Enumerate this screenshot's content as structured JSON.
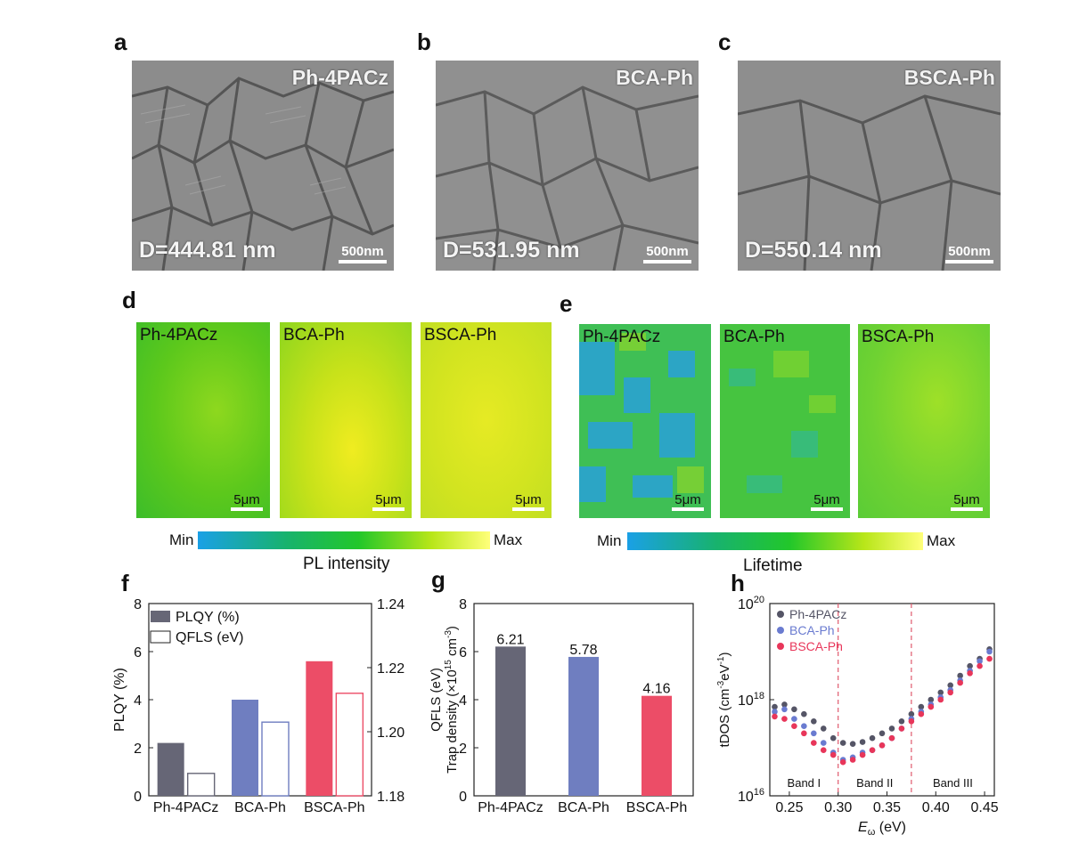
{
  "panels": {
    "a": "a",
    "b": "b",
    "c": "c",
    "d": "d",
    "e": "e",
    "f": "f",
    "g": "g",
    "h": "h"
  },
  "sem": [
    {
      "name": "Ph-4PACz",
      "grain": "D=444.81 nm",
      "scale": "500nm"
    },
    {
      "name": "BCA-Ph",
      "grain": "D=531.95 nm",
      "scale": "500nm"
    },
    {
      "name": "BSCA-Ph",
      "grain": "D=550.14 nm",
      "scale": "500nm"
    }
  ],
  "pl_maps": [
    {
      "name": "Ph-4PACz",
      "scale": "5μm"
    },
    {
      "name": "BCA-Ph",
      "scale": "5μm"
    },
    {
      "name": "BSCA-Ph",
      "scale": "5μm"
    }
  ],
  "lifetime_maps": [
    {
      "name": "Ph-4PACz",
      "scale": "5μm"
    },
    {
      "name": "BCA-Ph",
      "scale": "5μm"
    },
    {
      "name": "BSCA-Ph",
      "scale": "5μm"
    }
  ],
  "colorbars": {
    "pl": {
      "min": "Min",
      "max": "Max",
      "title": "PL intensity"
    },
    "lifetime": {
      "min": "Min",
      "max": "Max",
      "title": "Lifetime"
    }
  },
  "colors": {
    "ph4pacz": "#666676",
    "bcaph": "#6f7ec0",
    "bscaph": "#ec4d67"
  },
  "chart_data": [
    {
      "type": "bar",
      "panel": "f",
      "categories": [
        "Ph-4PACz",
        "BCA-Ph",
        "BSCA-Ph"
      ],
      "series": [
        {
          "name": "PLQY (%)",
          "values": [
            2.2,
            4.0,
            5.6
          ],
          "axis": "left",
          "fill": "solid"
        },
        {
          "name": "QFLS (eV)",
          "values": [
            1.187,
            1.203,
            1.212
          ],
          "axis": "right",
          "fill": "hollow"
        }
      ],
      "ylabel": "PLQY (%)",
      "y2label": "QFLS (eV)",
      "ylim": [
        0,
        8
      ],
      "y2lim": [
        1.18,
        1.24
      ],
      "yticks": [
        "0",
        "2",
        "4",
        "6",
        "8"
      ],
      "y2ticks": [
        "1.18",
        "1.20",
        "1.22",
        "1.24"
      ]
    },
    {
      "type": "bar",
      "panel": "g",
      "categories": [
        "Ph-4PACz",
        "BCA-Ph",
        "BSCA-Ph"
      ],
      "values": [
        6.21,
        5.78,
        4.16
      ],
      "value_labels": [
        "6.21",
        "5.78",
        "4.16"
      ],
      "ylabel_lines": [
        "QFLS (eV)",
        "Trap density (×10",
        "15",
        " cm",
        "-3",
        ")"
      ],
      "ylim": [
        0,
        8
      ],
      "yticks": [
        "0",
        "2",
        "4",
        "6",
        "8"
      ]
    },
    {
      "type": "scatter",
      "panel": "h",
      "xlabel_main": "E",
      "xlabel_sub": "ω",
      "xlabel_unit": " (eV)",
      "ylabel": "tDOS (cm",
      "ylabel_sup": "-3",
      "ylabel_mid": "eV",
      "ylabel_sup2": "-1",
      "ylabel_end": ")",
      "xlim": [
        0.23,
        0.46
      ],
      "ylim_log10": [
        16,
        20
      ],
      "log_y": true,
      "xticks": [
        "0.25",
        "0.30",
        "0.35",
        "0.40",
        "0.45"
      ],
      "ytick_labels": [
        {
          "base": "10",
          "exp": "16"
        },
        {
          "base": "10",
          "exp": "18"
        },
        {
          "base": "10",
          "exp": "20"
        }
      ],
      "band_dividers": [
        0.3,
        0.375
      ],
      "bands": [
        "Band I",
        "Band II",
        "Band III"
      ],
      "series": [
        {
          "name": "Ph-4PACz",
          "color": "#555566",
          "points": [
            [
              0.235,
              17.85
            ],
            [
              0.245,
              17.9
            ],
            [
              0.255,
              17.8
            ],
            [
              0.265,
              17.7
            ],
            [
              0.275,
              17.55
            ],
            [
              0.285,
              17.4
            ],
            [
              0.295,
              17.2
            ],
            [
              0.305,
              17.1
            ],
            [
              0.315,
              17.08
            ],
            [
              0.325,
              17.12
            ],
            [
              0.335,
              17.2
            ],
            [
              0.345,
              17.3
            ],
            [
              0.355,
              17.4
            ],
            [
              0.365,
              17.55
            ],
            [
              0.375,
              17.7
            ],
            [
              0.385,
              17.85
            ],
            [
              0.395,
              18.0
            ],
            [
              0.405,
              18.15
            ],
            [
              0.415,
              18.3
            ],
            [
              0.425,
              18.5
            ],
            [
              0.435,
              18.7
            ],
            [
              0.445,
              18.85
            ],
            [
              0.455,
              19.05
            ]
          ]
        },
        {
          "name": "BCA-Ph",
          "color": "#6a7bd0",
          "points": [
            [
              0.235,
              17.75
            ],
            [
              0.245,
              17.8
            ],
            [
              0.255,
              17.6
            ],
            [
              0.265,
              17.45
            ],
            [
              0.275,
              17.3
            ],
            [
              0.285,
              17.1
            ],
            [
              0.295,
              16.9
            ],
            [
              0.305,
              16.75
            ],
            [
              0.315,
              16.8
            ],
            [
              0.325,
              16.9
            ],
            [
              0.335,
              16.95
            ],
            [
              0.345,
              17.05
            ],
            [
              0.355,
              17.2
            ],
            [
              0.365,
              17.4
            ],
            [
              0.375,
              17.6
            ],
            [
              0.385,
              17.75
            ],
            [
              0.395,
              17.9
            ],
            [
              0.405,
              18.05
            ],
            [
              0.415,
              18.2
            ],
            [
              0.425,
              18.4
            ],
            [
              0.435,
              18.6
            ],
            [
              0.445,
              18.8
            ],
            [
              0.455,
              19.0
            ]
          ]
        },
        {
          "name": "BSCA-Ph",
          "color": "#e8365a",
          "points": [
            [
              0.235,
              17.65
            ],
            [
              0.245,
              17.6
            ],
            [
              0.255,
              17.45
            ],
            [
              0.265,
              17.3
            ],
            [
              0.275,
              17.1
            ],
            [
              0.285,
              16.95
            ],
            [
              0.295,
              16.85
            ],
            [
              0.305,
              16.7
            ],
            [
              0.315,
              16.75
            ],
            [
              0.325,
              16.85
            ],
            [
              0.335,
              16.95
            ],
            [
              0.345,
              17.05
            ],
            [
              0.355,
              17.2
            ],
            [
              0.365,
              17.4
            ],
            [
              0.375,
              17.55
            ],
            [
              0.385,
              17.7
            ],
            [
              0.395,
              17.85
            ],
            [
              0.405,
              18.0
            ],
            [
              0.415,
              18.15
            ],
            [
              0.425,
              18.35
            ],
            [
              0.435,
              18.55
            ],
            [
              0.445,
              18.7
            ],
            [
              0.455,
              18.85
            ]
          ]
        }
      ]
    }
  ]
}
